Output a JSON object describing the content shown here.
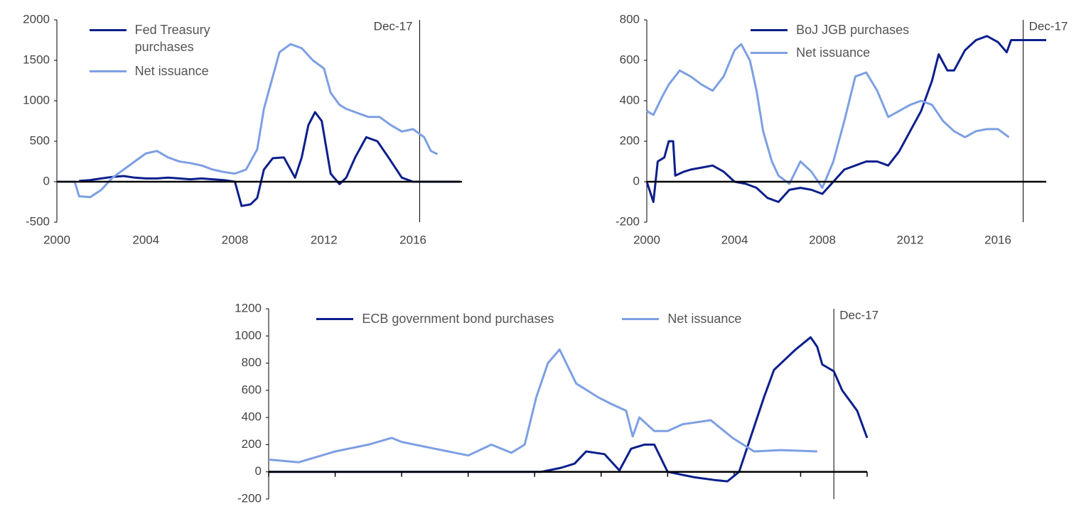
{
  "chart_data": [
    {
      "type": "line",
      "xlim": [
        2000,
        2018.2
      ],
      "xticks": [
        2000,
        2004,
        2008,
        2012,
        2016
      ],
      "ylim": [
        -500,
        2000
      ],
      "yticks": [
        -500,
        0,
        500,
        1000,
        1500,
        2000
      ],
      "legend": "upper left",
      "legend_direction": "vertical",
      "vline": {
        "x": 2016.3,
        "label": "Dec-17",
        "label_side": "left"
      },
      "series": [
        {
          "name": "Fed Treasury purchases",
          "color": "#0c1f8c",
          "x": [
            2001,
            2001.5,
            2002,
            2002.5,
            2003,
            2003.5,
            2004,
            2004.5,
            2005,
            2005.5,
            2006,
            2006.5,
            2007,
            2007.5,
            2008,
            2008.3,
            2008.7,
            2009,
            2009.3,
            2009.7,
            2010.2,
            2010.7,
            2011,
            2011.3,
            2011.6,
            2011.9,
            2012.3,
            2012.7,
            2013,
            2013.4,
            2013.9,
            2014.4,
            2014.9,
            2015.5,
            2016,
            2017,
            2018.1
          ],
          "values": [
            10,
            20,
            40,
            60,
            70,
            50,
            40,
            40,
            50,
            40,
            30,
            40,
            30,
            20,
            0,
            -300,
            -280,
            -200,
            150,
            290,
            300,
            50,
            300,
            700,
            860,
            750,
            100,
            -30,
            50,
            300,
            550,
            500,
            300,
            50,
            0,
            0,
            0
          ]
        },
        {
          "name": "Net issuance",
          "color": "#7d9fe3",
          "x": [
            2000,
            2000.8,
            2001,
            2001.5,
            2002,
            2002.5,
            2003,
            2003.5,
            2004,
            2004.5,
            2005,
            2005.5,
            2006,
            2006.5,
            2007,
            2007.5,
            2008,
            2008.5,
            2009,
            2009.3,
            2009.7,
            2010,
            2010.5,
            2011,
            2011.5,
            2012,
            2012.3,
            2012.7,
            2013,
            2013.5,
            2014,
            2014.5,
            2015,
            2015.5,
            2016,
            2016.5,
            2016.8,
            2017.1
          ],
          "values": [
            0,
            0,
            -180,
            -190,
            -100,
            50,
            150,
            250,
            350,
            380,
            300,
            250,
            230,
            200,
            150,
            120,
            100,
            150,
            400,
            900,
            1300,
            1600,
            1700,
            1650,
            1500,
            1400,
            1100,
            950,
            900,
            850,
            800,
            800,
            700,
            620,
            650,
            550,
            380,
            340
          ]
        }
      ]
    },
    {
      "type": "line",
      "xlim": [
        2000,
        2018.2
      ],
      "xticks": [
        2000,
        2004,
        2008,
        2012,
        2016
      ],
      "ylim": [
        -200,
        800
      ],
      "yticks": [
        -200,
        0,
        200,
        400,
        600,
        800
      ],
      "legend": "upper center",
      "legend_direction": "vertical",
      "vline": {
        "x": 2017.15,
        "label": "Dec-17",
        "label_side": "right"
      },
      "series": [
        {
          "name": "BoJ JGB purchases",
          "color": "#0c1f8c",
          "x": [
            2000,
            2000.3,
            2000.5,
            2000.8,
            2001,
            2001.2,
            2001.3,
            2001.7,
            2002,
            2002.5,
            2003,
            2003.5,
            2004,
            2004.5,
            2005,
            2005.5,
            2006,
            2006.5,
            2007,
            2007.5,
            2008,
            2008.5,
            2009,
            2009.5,
            2010,
            2010.5,
            2011,
            2011.5,
            2012,
            2012.5,
            2013,
            2013.3,
            2013.7,
            2014,
            2014.5,
            2015,
            2015.5,
            2016,
            2016.4,
            2016.6,
            2017,
            2018.2
          ],
          "values": [
            0,
            -100,
            100,
            120,
            200,
            200,
            30,
            50,
            60,
            70,
            80,
            50,
            0,
            -10,
            -30,
            -80,
            -100,
            -40,
            -30,
            -40,
            -60,
            0,
            60,
            80,
            100,
            100,
            80,
            150,
            250,
            350,
            500,
            630,
            550,
            550,
            650,
            700,
            720,
            690,
            640,
            700,
            700,
            700
          ]
        },
        {
          "name": "Net issuance",
          "color": "#7d9fe3",
          "x": [
            2000,
            2000.3,
            2000.7,
            2001,
            2001.5,
            2002,
            2002.5,
            2003,
            2003.5,
            2004,
            2004.3,
            2004.7,
            2005,
            2005.3,
            2005.7,
            2006,
            2006.5,
            2007,
            2007.5,
            2008,
            2008.5,
            2009,
            2009.5,
            2010,
            2010.5,
            2011,
            2011.5,
            2012,
            2012.5,
            2013,
            2013.5,
            2014,
            2014.5,
            2015,
            2015.5,
            2016,
            2016.5
          ],
          "values": [
            350,
            330,
            420,
            480,
            550,
            520,
            480,
            450,
            520,
            650,
            680,
            600,
            450,
            250,
            100,
            30,
            -10,
            100,
            50,
            -30,
            100,
            300,
            520,
            540,
            450,
            320,
            350,
            380,
            400,
            380,
            300,
            250,
            220,
            250,
            260,
            260,
            220
          ]
        }
      ]
    },
    {
      "type": "line",
      "xlim": [
        2000,
        2018
      ],
      "xticks": [
        2000,
        2002,
        2004,
        2006,
        2008,
        2010,
        2012,
        2014,
        2016,
        2018
      ],
      "show_xtick_labels": false,
      "ylim": [
        -200,
        1200
      ],
      "yticks": [
        -200,
        0,
        200,
        400,
        600,
        800,
        1000,
        1200
      ],
      "legend": "upper left",
      "legend_direction": "horizontal",
      "vline": {
        "x": 2017,
        "label": "Dec-17",
        "label_side": "right"
      },
      "series": [
        {
          "name": "ECB government bond purchases",
          "color": "#0c1f8c",
          "x": [
            2000,
            2008.2,
            2008.8,
            2009.2,
            2009.55,
            2010.1,
            2010.55,
            2010.9,
            2011.3,
            2011.6,
            2012,
            2012.8,
            2013.4,
            2013.8,
            2014.15,
            2014.9,
            2015.2,
            2015.85,
            2016.3,
            2016.5,
            2016.65,
            2017,
            2017.25,
            2017.7,
            2018
          ],
          "values": [
            0,
            0,
            30,
            60,
            150,
            130,
            10,
            170,
            200,
            200,
            0,
            -40,
            -60,
            -70,
            0,
            550,
            750,
            900,
            990,
            920,
            790,
            740,
            600,
            450,
            250
          ]
        },
        {
          "name": "Net issuance",
          "color": "#7d9fe3",
          "x": [
            2000,
            2000.9,
            2002,
            2003,
            2003.7,
            2004,
            2005,
            2006,
            2006.7,
            2007.3,
            2007.7,
            2008.05,
            2008.4,
            2008.75,
            2009.25,
            2009.9,
            2010.3,
            2010.75,
            2010.95,
            2011.15,
            2011.6,
            2012,
            2012.45,
            2013.3,
            2013.95,
            2014.6,
            2015.4,
            2016.5
          ],
          "values": [
            90,
            70,
            150,
            200,
            250,
            220,
            170,
            120,
            200,
            140,
            200,
            550,
            800,
            900,
            650,
            550,
            500,
            450,
            260,
            400,
            300,
            300,
            350,
            380,
            250,
            150,
            160,
            150
          ]
        }
      ]
    }
  ]
}
